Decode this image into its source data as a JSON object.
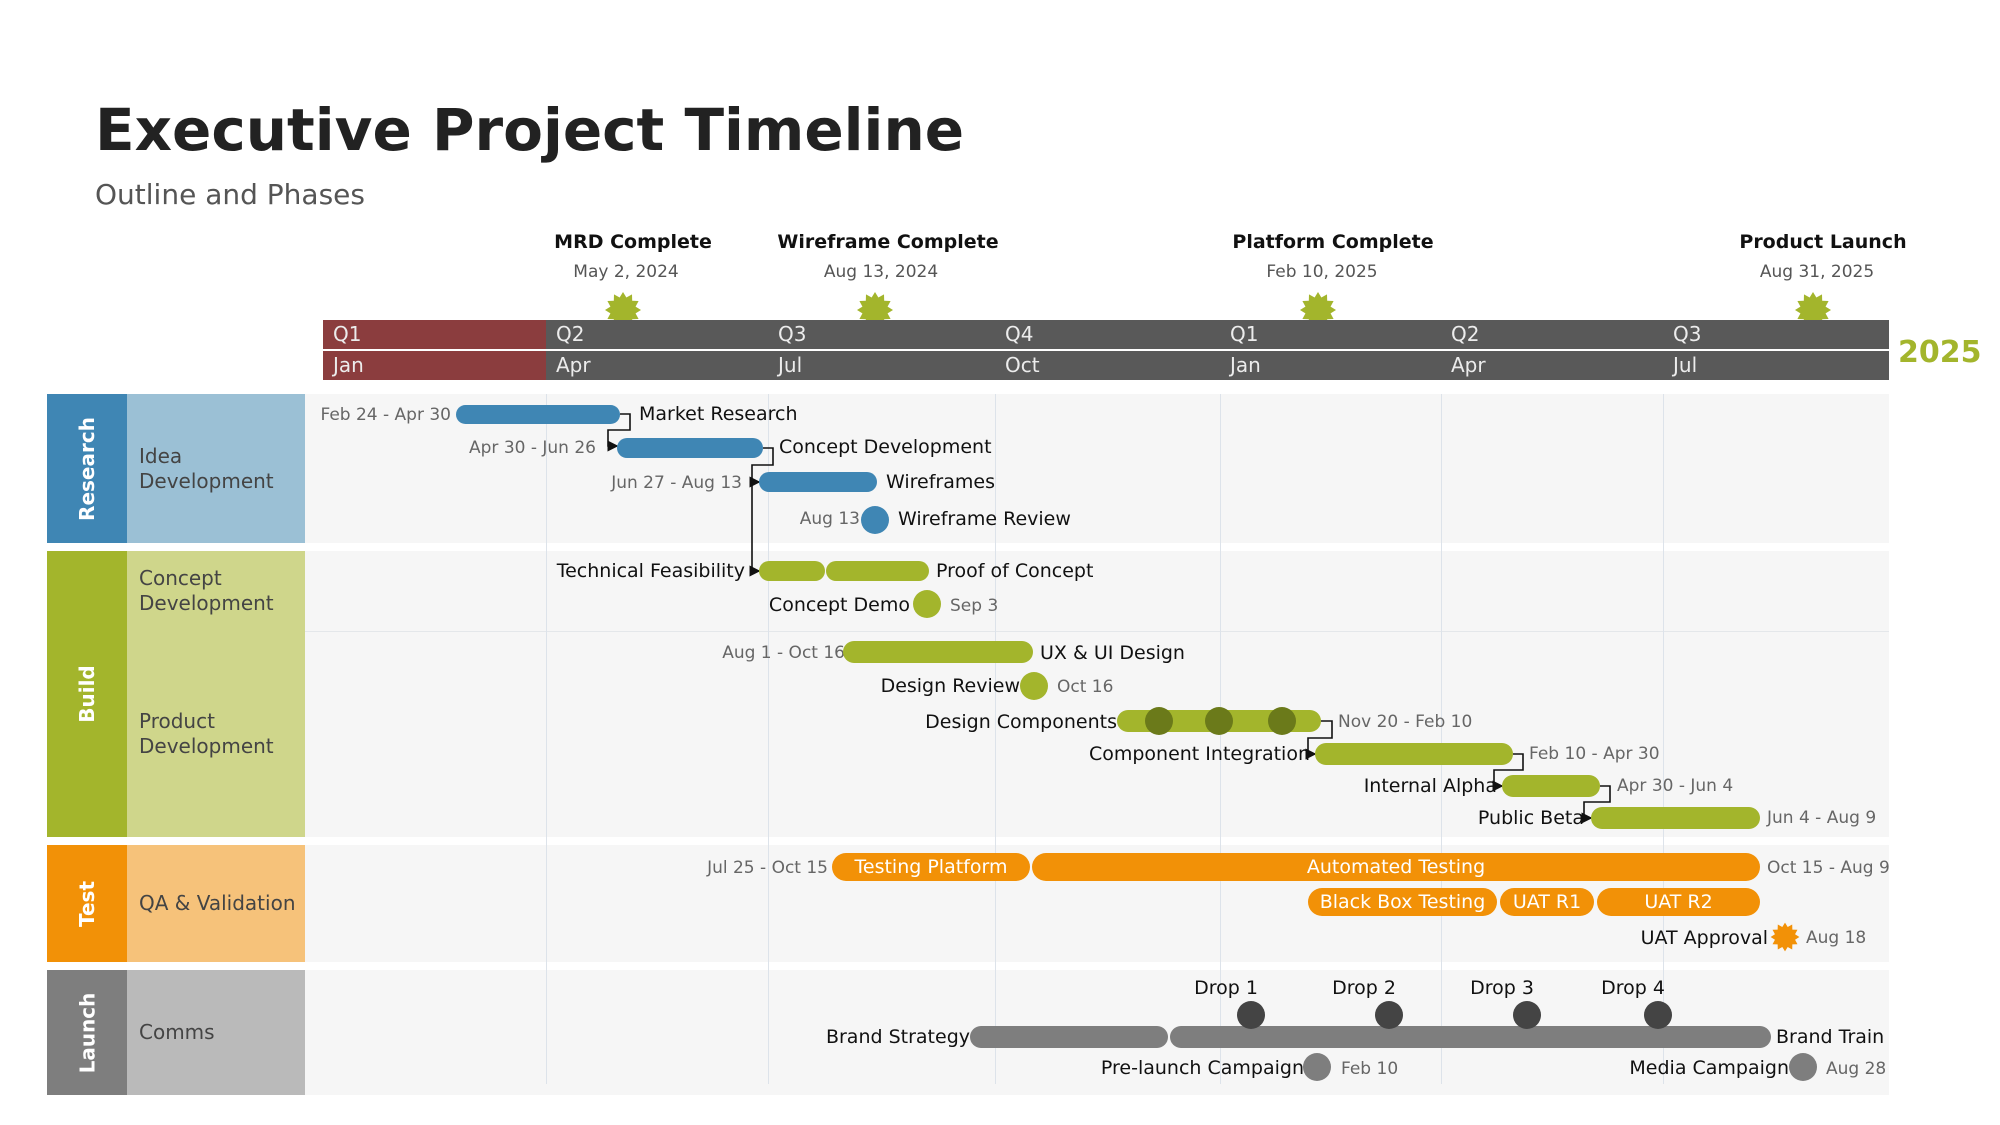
{
  "title": "Executive Project Timeline",
  "subtitle": "Outline and Phases",
  "year_label": "2025",
  "colors": {
    "research": "#3f86b4",
    "research_light": "#9bc0d5",
    "build": "#a3b52c",
    "build_light": "#cfd68b",
    "test": "#f29107",
    "test_light": "#f6c27a",
    "launch": "#7e7e7e",
    "launch_light": "#bababa",
    "header_dark": "#595959",
    "header_current": "#8b3d3e",
    "milestone": "#a3b52c",
    "drop_dot": "#444444",
    "year": "#a3b52c"
  },
  "milestones": [
    {
      "name": "MRD Complete",
      "date": "May 2, 2024"
    },
    {
      "name": "Wireframe Complete",
      "date": "Aug 13, 2024"
    },
    {
      "name": "Platform Complete",
      "date": "Feb 10, 2025"
    },
    {
      "name": "Product Launch",
      "date": "Aug 31, 2025"
    }
  ],
  "header": {
    "quarters": [
      "Q1",
      "Q2",
      "Q3",
      "Q4",
      "Q1",
      "Q2",
      "Q3"
    ],
    "months": [
      "Jan",
      "Apr",
      "Jul",
      "Oct",
      "Jan",
      "Apr",
      "Jul"
    ]
  },
  "phases": [
    {
      "name": "Research",
      "subs": [
        "Idea Development"
      ]
    },
    {
      "name": "Build",
      "subs": [
        "Concept Development",
        "Product Development"
      ]
    },
    {
      "name": "Test",
      "subs": [
        "QA & Validation"
      ]
    },
    {
      "name": "Launch",
      "subs": [
        "Comms"
      ]
    }
  ],
  "tasks": {
    "market_research": {
      "label": "Market Research",
      "dates": "Feb 24 - Apr 30"
    },
    "concept_development": {
      "label": "Concept Development",
      "dates": "Apr 30 - Jun 26"
    },
    "wireframes": {
      "label": "Wireframes",
      "dates": "Jun 27 - Aug 13"
    },
    "wireframe_review": {
      "label": "Wireframe Review",
      "dates": "Aug 13"
    },
    "technical_feasibility": {
      "label": "Technical Feasibility"
    },
    "proof_of_concept": {
      "label": "Proof of Concept"
    },
    "concept_demo": {
      "label": "Concept Demo",
      "dates": "Sep 3"
    },
    "ux_ui_design": {
      "label": "UX & UI Design",
      "dates": "Aug 1 - Oct 16"
    },
    "design_review": {
      "label": "Design Review",
      "dates": "Oct 16"
    },
    "design_components": {
      "label": "Design Components",
      "dates": "Nov 20 - Feb 10"
    },
    "component_integration": {
      "label": "Component Integration",
      "dates": "Feb 10 - Apr 30"
    },
    "internal_alpha": {
      "label": "Internal Alpha",
      "dates": "Apr 30 - Jun 4"
    },
    "public_beta": {
      "label": "Public Beta",
      "dates": "Jun 4 - Aug 9"
    },
    "testing_platform": {
      "label": "Testing Platform",
      "dates": "Jul 25 - Oct 15"
    },
    "automated_testing": {
      "label": "Automated Testing",
      "dates": "Oct 15 - Aug 9"
    },
    "black_box_testing": {
      "label": "Black Box Testing"
    },
    "uat_r1": {
      "label": "UAT R1"
    },
    "uat_r2": {
      "label": "UAT R2"
    },
    "uat_approval": {
      "label": "UAT Approval",
      "dates": "Aug 18"
    },
    "brand_strategy": {
      "label": "Brand Strategy"
    },
    "brand_train": {
      "label": "Brand Train"
    },
    "drops": [
      "Drop 1",
      "Drop 2",
      "Drop 3",
      "Drop 4"
    ],
    "pre_launch_campaign": {
      "label": "Pre-launch Campaign",
      "dates": "Feb 10"
    },
    "media_campaign": {
      "label": "Media Campaign",
      "dates": "Aug 28"
    }
  }
}
